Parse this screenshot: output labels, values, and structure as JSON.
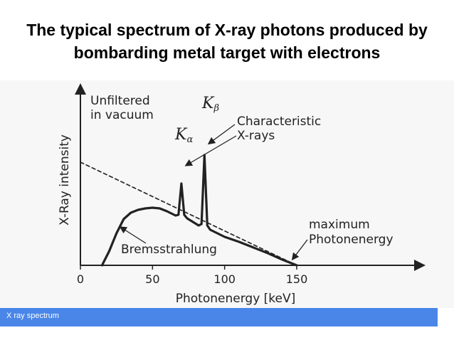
{
  "slide": {
    "title_line1": "The typical spectrum of X-ray photons produced by",
    "title_line2": "bombarding metal target with electrons"
  },
  "caption": {
    "text": "X ray spectrum",
    "color": "#4a86e8"
  },
  "chart_data": {
    "type": "line",
    "xlabel": "Photonenergy [keV]",
    "ylabel": "X-Ray intensity",
    "xlim": [
      0,
      150
    ],
    "x_ticks": [
      "0",
      "50",
      "100",
      "150"
    ],
    "grid": false,
    "series": [
      {
        "name": "Bremsstrahlung",
        "style": "solid",
        "x": [
          15,
          20,
          25,
          30,
          35,
          40,
          45,
          50,
          55,
          60,
          66,
          68,
          70,
          72,
          74,
          82,
          84,
          86,
          88,
          90,
          100,
          110,
          120,
          130,
          140,
          150
        ],
        "y": [
          0.0,
          0.2,
          0.45,
          0.65,
          0.74,
          0.78,
          0.8,
          0.81,
          0.8,
          0.76,
          0.7,
          0.71,
          1.15,
          0.71,
          0.66,
          0.56,
          0.58,
          1.55,
          0.56,
          0.5,
          0.4,
          0.33,
          0.25,
          0.17,
          0.08,
          0.0
        ]
      },
      {
        "name": "Unfiltered in vacuum",
        "style": "dashed",
        "x": [
          0,
          150
        ],
        "y": [
          1.45,
          0.0
        ]
      }
    ],
    "annotations": {
      "unfiltered": [
        "Unfiltered",
        "in vacuum"
      ],
      "k_alpha": "K",
      "k_alpha_sub": "α",
      "k_beta": "K",
      "k_beta_sub": "β",
      "characteristic": [
        "Characteristic",
        "X-rays"
      ],
      "bremsstrahlung": "Bremsstrahlung",
      "maximum": [
        "maximum",
        "Photonenergy"
      ]
    }
  }
}
